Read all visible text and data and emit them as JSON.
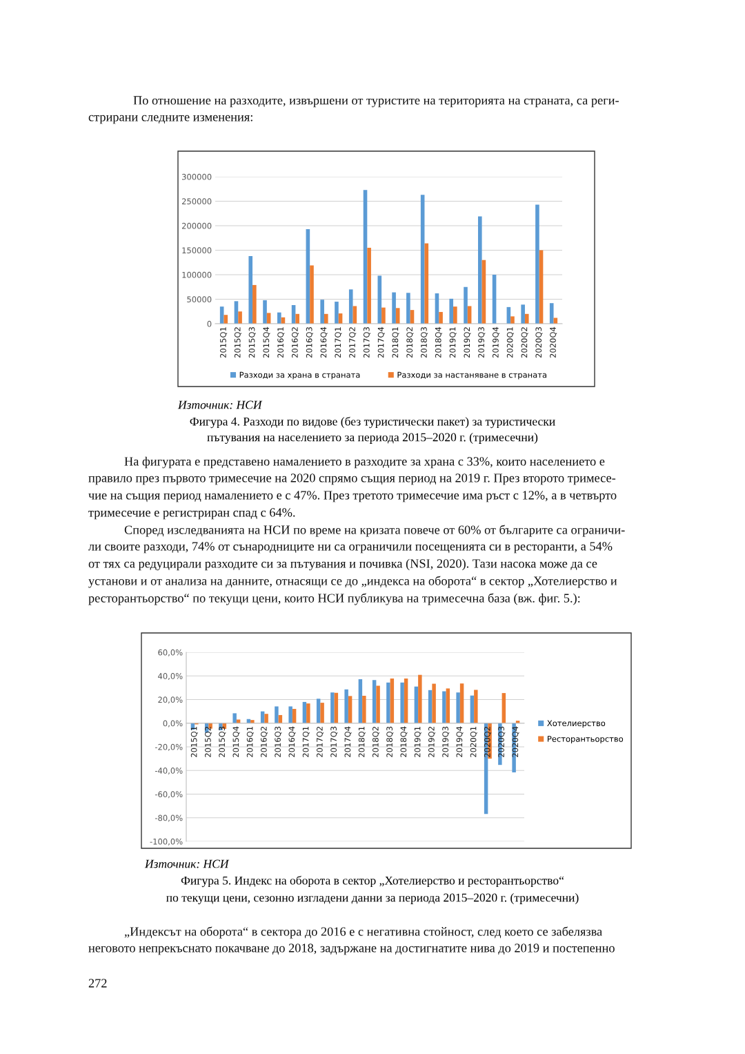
{
  "chart_data": [
    {
      "type": "other",
      "annotations": [
        "По отношение на разходите, извършени от туристите на територията на страната, са реги-",
        "стрирани следните изменения:"
      ]
    },
    {
      "type": "bar",
      "categories": [
        "2015Q1",
        "2015Q2",
        "2015Q3",
        "2015Q4",
        "2016Q1",
        "2016Q2",
        "2016Q3",
        "2016Q4",
        "2017Q1",
        "2017Q2",
        "2017Q3",
        "2017Q4",
        "2018Q1",
        "2018Q2",
        "2018Q3",
        "2018Q4",
        "2019Q1",
        "2019Q2",
        "2019Q3",
        "2019Q4",
        "2020Q1",
        "2020Q2",
        "2020Q3",
        "2020Q4"
      ],
      "series": [
        {
          "name": "Разходи за храна в страната",
          "color": "#5b9bd5",
          "values": [
            35000,
            46000,
            138000,
            48000,
            23000,
            38000,
            193000,
            49000,
            45000,
            70000,
            273000,
            98000,
            64000,
            63000,
            263000,
            62000,
            51000,
            75000,
            219000,
            100000,
            34000,
            39000,
            243000,
            42000
          ]
        },
        {
          "name": "Разходи за настаняване в страната",
          "color": "#ed7d31",
          "values": [
            18000,
            25000,
            79000,
            22000,
            13000,
            20000,
            119000,
            20000,
            21000,
            36000,
            155000,
            33000,
            32000,
            28000,
            164000,
            24000,
            35000,
            36000,
            130000,
            null,
            15000,
            20000,
            150000,
            12000
          ]
        }
      ],
      "ylim": [
        0,
        300000
      ],
      "yticks": [
        0,
        50000,
        100000,
        150000,
        200000,
        250000,
        300000
      ],
      "grid": "y",
      "legend": "bottom",
      "annotations": [
        "Източник: НСИ",
        "Фигура 4. Разходи по видове (без туристически пакет) за туристически",
        "пътувания на населението за периода 2015–2020 г. (тримесечни)"
      ]
    },
    {
      "type": "other",
      "annotations": [
        "На фигурата е представено намалението в разходите за храна с 33%, които населението е",
        "правило през първото тримесечие на 2020 спрямо същия период на 2019 г. През второто тримесе-",
        "чие на същия период намалението е с 47%. През третото тримесечие има ръст с 12%, а в четвърто",
        "тримесечие е регистриран спад с 64%.",
        "Според изследванията на НСИ по време на кризата повече от 60% от българите са ограничи-",
        "ли своите разходи, 74% от сънародниците ни са ограничили посещенията си в ресторанти, а 54%",
        "от тях са редуцирали разходите си за пътувания и почивка (NSI, 2020). Тази насока може да се",
        "установи и от анализа на данните, отнасящи се до „индекса на оборота“ в сектор „Хотелиерство и",
        "ресторантьорство“ по текущи цени, които НСИ публикува на тримесечна база (вж. фиг. 5.):"
      ]
    },
    {
      "type": "bar",
      "categories": [
        "2015Q1",
        "2015Q2",
        "2015Q3",
        "2015Q4",
        "2016Q1",
        "2016Q2",
        "2016Q3",
        "2016Q4",
        "2017Q1",
        "2017Q2",
        "2017Q3",
        "2017Q4",
        "2018Q1",
        "2018Q2",
        "2018Q3",
        "2018Q4",
        "2019Q1",
        "2019Q2",
        "2019Q3",
        "2019Q4",
        "2020Q1",
        "2020Q2",
        "2020Q3",
        "2020Q4"
      ],
      "series": [
        {
          "name": "Хотелиерство",
          "color": "#5b9bd5",
          "values": [
            -5.5,
            -8,
            -6,
            8.4,
            3.5,
            10,
            14.2,
            14.2,
            18,
            20.7,
            26,
            28.6,
            37.2,
            36.5,
            34.4,
            34.4,
            31,
            28,
            27,
            26,
            23.4,
            -76.8,
            -35.3,
            -41.6
          ]
        },
        {
          "name": "Ресторантьорство",
          "color": "#ed7d31",
          "values": [
            -1,
            -4.6,
            -4.8,
            3.1,
            2.7,
            7.9,
            6.9,
            12.1,
            16.7,
            17.3,
            25.7,
            23,
            23.2,
            31.7,
            37.8,
            37.8,
            40.9,
            33.4,
            29.4,
            33.6,
            28.2,
            -30,
            25.5,
            2.1
          ]
        }
      ],
      "ylim": [
        -100,
        60
      ],
      "yticks": [
        {
          "value": -100,
          "label": "-100,0%"
        },
        {
          "value": -80,
          "label": "-80,0%"
        },
        {
          "value": -60,
          "label": "-60,0%"
        },
        {
          "value": -40,
          "label": "-40,0%"
        },
        {
          "value": -20,
          "label": "-20,0%"
        },
        {
          "value": 0,
          "label": "0,0%"
        },
        {
          "value": 20,
          "label": "20,0%"
        },
        {
          "value": 40,
          "label": "40,0%"
        },
        {
          "value": 60,
          "label": "60,0%"
        }
      ],
      "grid": "y",
      "legend": "right",
      "annotations": [
        "Източник: НСИ",
        "Фигура 5. Индекс на оборота в сектор „Хотелиерство и ресторантьорство“",
        "по текущи цени, сезонно изгладени данни за периода 2015–2020 г. (тримесечни)"
      ]
    },
    {
      "type": "other",
      "annotations": [
        "„Индексът на оборота“ в сектора до 2016 е с негативна стойност, след което се забелязва",
        "неговото непрекъснато покачване до 2018, задържане на достигнатите нива до 2019 и постепенно",
        "272"
      ]
    }
  ]
}
